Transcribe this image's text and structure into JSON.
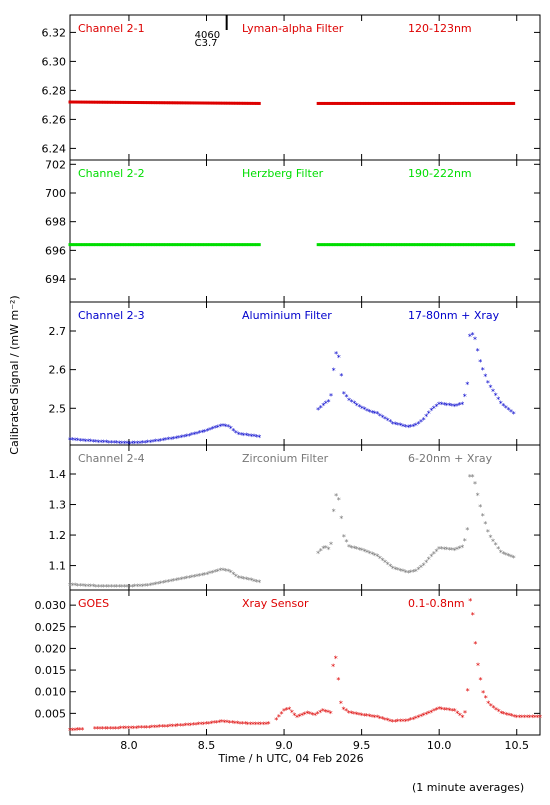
{
  "chart_data": [
    {
      "type": "scatter",
      "channel_label": "Channel 2-1",
      "filter_label": "Lyman-alpha Filter",
      "band_label": "120-123nm",
      "color": "#dd0000",
      "xlim": [
        7.62,
        10.65
      ],
      "ylim": [
        6.232,
        6.332
      ],
      "yticks": [
        6.24,
        6.26,
        6.28,
        6.3,
        6.32
      ],
      "tick_decimals": 2,
      "series": [
        {
          "x": [
            7.62,
            8.84
          ],
          "y": [
            6.272,
            6.271
          ]
        },
        {
          "x": [
            9.22,
            10.48
          ],
          "y": [
            6.271,
            6.271
          ]
        }
      ],
      "annotation": {
        "line1": "4060",
        "line2": "C3.7",
        "x": 8.63
      }
    },
    {
      "type": "scatter",
      "channel_label": "Channel 2-2",
      "filter_label": "Herzberg Filter",
      "band_label": "190-222nm",
      "color": "#00dd00",
      "xlim": [
        7.62,
        10.65
      ],
      "ylim": [
        692.4,
        702.3
      ],
      "yticks": [
        694,
        696,
        698,
        700,
        702
      ],
      "tick_decimals": 0,
      "series": [
        {
          "x": [
            7.62,
            8.84
          ],
          "y": [
            696.4,
            696.4
          ]
        },
        {
          "x": [
            9.22,
            10.48
          ],
          "y": [
            696.4,
            696.4
          ]
        }
      ]
    },
    {
      "type": "scatter",
      "channel_label": "Channel 2-3",
      "filter_label": "Aluminium Filter",
      "band_label": "17-80nm + Xray",
      "color": "#0000cc",
      "xlim": [
        7.62,
        10.65
      ],
      "ylim": [
        2.405,
        2.775
      ],
      "yticks": [
        2.5,
        2.6,
        2.7
      ],
      "tick_decimals": 1,
      "series": [
        {
          "x": [
            7.62,
            7.8,
            8.0,
            8.1,
            8.2,
            8.35,
            8.5,
            8.6,
            8.65,
            8.7,
            8.84
          ],
          "y": [
            2.418,
            2.412,
            2.408,
            2.41,
            2.415,
            2.425,
            2.44,
            2.455,
            2.45,
            2.432,
            2.425
          ]
        },
        {
          "x": [
            9.22,
            9.26,
            9.3,
            9.32,
            9.34,
            9.36,
            9.38,
            9.42,
            9.5,
            9.55,
            9.6,
            9.7,
            9.8,
            9.85,
            9.9,
            9.95,
            10.0,
            10.1,
            10.15,
            10.18,
            10.2,
            10.23,
            10.27,
            10.32,
            10.4,
            10.48
          ],
          "y": [
            2.495,
            2.51,
            2.52,
            2.6,
            2.65,
            2.62,
            2.54,
            2.52,
            2.5,
            2.49,
            2.485,
            2.46,
            2.45,
            2.455,
            2.47,
            2.495,
            2.51,
            2.505,
            2.51,
            2.55,
            2.7,
            2.68,
            2.61,
            2.56,
            2.51,
            2.485
          ]
        }
      ]
    },
    {
      "type": "scatter",
      "channel_label": "Channel 2-4",
      "filter_label": "Zirconium Filter",
      "band_label": "6-20nm + Xray",
      "color": "#777777",
      "xlim": [
        7.62,
        10.65
      ],
      "ylim": [
        1.02,
        1.495
      ],
      "yticks": [
        1.1,
        1.2,
        1.3,
        1.4
      ],
      "tick_decimals": 1,
      "series": [
        {
          "x": [
            7.62,
            7.8,
            8.0,
            8.1,
            8.2,
            8.35,
            8.5,
            8.6,
            8.65,
            8.7,
            8.84
          ],
          "y": [
            1.035,
            1.03,
            1.03,
            1.032,
            1.04,
            1.055,
            1.07,
            1.085,
            1.08,
            1.06,
            1.045
          ]
        },
        {
          "x": [
            9.22,
            9.26,
            9.3,
            9.32,
            9.34,
            9.36,
            9.38,
            9.42,
            9.5,
            9.55,
            9.6,
            9.7,
            9.8,
            9.85,
            9.9,
            9.95,
            10.0,
            10.1,
            10.15,
            10.18,
            10.2,
            10.23,
            10.27,
            10.32,
            10.4,
            10.48
          ],
          "y": [
            1.14,
            1.16,
            1.15,
            1.28,
            1.34,
            1.3,
            1.2,
            1.16,
            1.15,
            1.14,
            1.13,
            1.09,
            1.075,
            1.08,
            1.1,
            1.13,
            1.155,
            1.15,
            1.16,
            1.2,
            1.41,
            1.37,
            1.28,
            1.2,
            1.14,
            1.125
          ]
        }
      ]
    },
    {
      "type": "scatter",
      "channel_label": "GOES",
      "filter_label": "Xray Sensor",
      "band_label": "0.1-0.8nm",
      "color": "#dd0000",
      "xlim": [
        7.62,
        10.65
      ],
      "ylim": [
        0.0,
        0.0335
      ],
      "yticks": [
        0.005,
        0.01,
        0.015,
        0.02,
        0.025,
        0.03
      ],
      "tick_decimals": 3,
      "series": [
        {
          "x": [
            7.62,
            7.7
          ],
          "y": [
            0.001,
            0.0012
          ]
        },
        {
          "x": [
            7.78,
            7.9,
            8.1,
            8.3,
            8.5,
            8.6,
            8.65,
            8.7,
            8.8,
            8.9
          ],
          "y": [
            0.0014,
            0.0014,
            0.0016,
            0.002,
            0.0025,
            0.003,
            0.0028,
            0.0026,
            0.0024,
            0.0025
          ]
        },
        {
          "x": [
            8.95,
            9.0,
            9.03,
            9.08,
            9.15,
            9.2,
            9.25,
            9.3,
            9.32,
            9.34,
            9.36,
            9.38,
            9.42,
            9.5,
            9.6,
            9.7,
            9.8,
            9.9,
            10.0,
            10.1,
            10.15,
            10.18,
            10.2,
            10.22,
            10.24,
            10.28,
            10.32,
            10.4,
            10.5,
            10.65
          ],
          "y": [
            0.0035,
            0.0055,
            0.006,
            0.004,
            0.005,
            0.0045,
            0.0055,
            0.005,
            0.018,
            0.0175,
            0.008,
            0.006,
            0.005,
            0.0045,
            0.004,
            0.003,
            0.0032,
            0.0045,
            0.006,
            0.0055,
            0.004,
            0.006,
            0.031,
            0.027,
            0.018,
            0.01,
            0.007,
            0.005,
            0.004,
            0.004
          ]
        }
      ]
    }
  ],
  "xticks": [
    8.0,
    8.5,
    9.0,
    9.5,
    10.0,
    10.5
  ],
  "xlabel": "Time / h UTC, 04 Feb 2026",
  "ylabel": "Calibrated Signal / (mW m⁻²)",
  "footnote": "(1 minute averages)"
}
